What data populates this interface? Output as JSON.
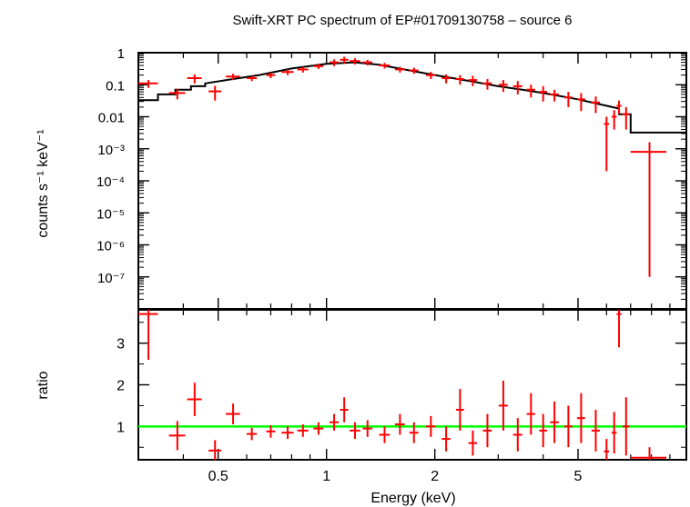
{
  "chart_data": [
    {
      "type": "scatter",
      "panel": "spectrum",
      "title": "Swift-XRT PC spectrum of EP#01709130758 – source 6",
      "xlabel": "Energy (keV)",
      "ylabel": "counts s⁻¹ keV⁻¹",
      "xscale": "log",
      "yscale": "log",
      "xlim": [
        0.3,
        10.0
      ],
      "ylim": [
        1e-08,
        1.0
      ],
      "x_ticks": [
        "0.5",
        "1",
        "2",
        "5"
      ],
      "y_ticks": [
        "1",
        "0.1",
        "0.01",
        "10⁻³",
        "10⁻⁴",
        "10⁻⁵",
        "10⁻⁶",
        "10⁻⁷"
      ],
      "series": [
        {
          "color": "#ff0000",
          "x": [
            0.32,
            0.385,
            0.43,
            0.49,
            0.55,
            0.62,
            0.7,
            0.78,
            0.86,
            0.95,
            1.05,
            1.12,
            1.2,
            1.3,
            1.45,
            1.6,
            1.75,
            1.95,
            2.15,
            2.35,
            2.55,
            2.8,
            3.1,
            3.4,
            3.7,
            4.0,
            4.3,
            4.7,
            5.1,
            5.6,
            6.0,
            6.3,
            6.5,
            6.8,
            7.9
          ],
          "y": [
            0.11,
            0.055,
            0.16,
            0.062,
            0.18,
            0.16,
            0.2,
            0.25,
            0.3,
            0.38,
            0.5,
            0.6,
            0.55,
            0.5,
            0.4,
            0.3,
            0.28,
            0.2,
            0.16,
            0.15,
            0.14,
            0.11,
            0.1,
            0.09,
            0.07,
            0.06,
            0.05,
            0.04,
            0.035,
            0.028,
            0.006,
            0.01,
            0.022,
            0.012,
            0.0008
          ],
          "xerr": [
            0.02,
            0.02,
            0.02,
            0.02,
            0.025,
            0.02,
            0.02,
            0.03,
            0.03,
            0.03,
            0.03,
            0.03,
            0.04,
            0.04,
            0.05,
            0.05,
            0.05,
            0.06,
            0.06,
            0.06,
            0.07,
            0.08,
            0.09,
            0.1,
            0.1,
            0.1,
            0.12,
            0.12,
            0.13,
            0.15,
            0.1,
            0.1,
            0.1,
            0.15,
            0.9
          ],
          "yerr_lo": [
            0.03,
            0.02,
            0.05,
            0.03,
            0.04,
            0.03,
            0.04,
            0.05,
            0.06,
            0.07,
            0.12,
            0.15,
            0.12,
            0.1,
            0.08,
            0.06,
            0.06,
            0.05,
            0.05,
            0.05,
            0.05,
            0.04,
            0.04,
            0.04,
            0.03,
            0.03,
            0.02,
            0.02,
            0.02,
            0.015,
            0.0058,
            0.006,
            0.01,
            0.008,
            0.0007999
          ],
          "yerr_hi": [
            0.03,
            0.02,
            0.05,
            0.03,
            0.04,
            0.03,
            0.04,
            0.05,
            0.06,
            0.07,
            0.12,
            0.15,
            0.12,
            0.1,
            0.08,
            0.06,
            0.06,
            0.05,
            0.05,
            0.05,
            0.05,
            0.04,
            0.04,
            0.04,
            0.03,
            0.03,
            0.02,
            0.02,
            0.02,
            0.015,
            0.004,
            0.006,
            0.01,
            0.008,
            0.0008
          ]
        },
        {
          "color": "#000000",
          "draw": "model-step",
          "x": [
            0.3,
            0.34,
            0.34,
            0.38,
            0.38,
            0.42,
            0.42,
            0.46,
            0.46,
            0.55,
            0.65,
            0.8,
            1.0,
            1.2,
            1.4,
            1.7,
            2.0,
            2.5,
            3.0,
            3.5,
            4.0,
            5.0,
            6.0,
            6.5,
            6.5,
            7.0,
            7.0,
            10.0
          ],
          "y": [
            0.033,
            0.033,
            0.05,
            0.05,
            0.07,
            0.07,
            0.09,
            0.09,
            0.11,
            0.15,
            0.2,
            0.32,
            0.45,
            0.5,
            0.42,
            0.28,
            0.2,
            0.13,
            0.09,
            0.07,
            0.055,
            0.035,
            0.022,
            0.018,
            0.012,
            0.012,
            0.0032,
            0.0032
          ]
        }
      ]
    },
    {
      "type": "scatter",
      "panel": "ratio",
      "xlabel": "Energy (keV)",
      "ylabel": "ratio",
      "xscale": "log",
      "xlim": [
        0.3,
        10.0
      ],
      "ylim": [
        0.2,
        3.8
      ],
      "x_ticks": [
        "0.5",
        "1",
        "2",
        "5"
      ],
      "y_ticks": [
        "1",
        "2",
        "3"
      ],
      "reference_line": {
        "y": 1.0,
        "color": "#00ff00"
      },
      "series": [
        {
          "color": "#ff0000",
          "x": [
            0.32,
            0.385,
            0.43,
            0.49,
            0.55,
            0.62,
            0.7,
            0.78,
            0.86,
            0.95,
            1.05,
            1.12,
            1.2,
            1.3,
            1.45,
            1.6,
            1.75,
            1.95,
            2.15,
            2.35,
            2.55,
            2.8,
            3.1,
            3.4,
            3.7,
            4.0,
            4.3,
            4.7,
            5.1,
            5.6,
            6.0,
            6.3,
            6.5,
            6.8,
            7.9
          ],
          "y": [
            3.7,
            0.78,
            1.65,
            0.42,
            1.3,
            0.82,
            0.88,
            0.85,
            0.9,
            0.95,
            1.1,
            1.4,
            0.9,
            0.95,
            0.8,
            1.05,
            0.85,
            1.0,
            0.7,
            1.4,
            0.6,
            0.9,
            1.5,
            0.8,
            1.3,
            0.9,
            1.1,
            1.0,
            1.2,
            0.9,
            0.4,
            0.85,
            3.7,
            1.0,
            0.25
          ],
          "xerr": [
            0.02,
            0.02,
            0.02,
            0.02,
            0.025,
            0.02,
            0.02,
            0.03,
            0.03,
            0.03,
            0.03,
            0.03,
            0.04,
            0.04,
            0.05,
            0.05,
            0.05,
            0.06,
            0.06,
            0.06,
            0.07,
            0.08,
            0.09,
            0.1,
            0.1,
            0.1,
            0.12,
            0.12,
            0.13,
            0.15,
            0.1,
            0.1,
            0.1,
            0.15,
            0.9
          ],
          "yerr": [
            1.1,
            0.35,
            0.4,
            0.25,
            0.25,
            0.15,
            0.15,
            0.15,
            0.15,
            0.15,
            0.2,
            0.3,
            0.2,
            0.2,
            0.2,
            0.25,
            0.25,
            0.25,
            0.3,
            0.5,
            0.3,
            0.4,
            0.6,
            0.4,
            0.5,
            0.4,
            0.5,
            0.5,
            0.6,
            0.5,
            0.3,
            0.5,
            0.8,
            0.7,
            0.25
          ]
        }
      ]
    }
  ]
}
